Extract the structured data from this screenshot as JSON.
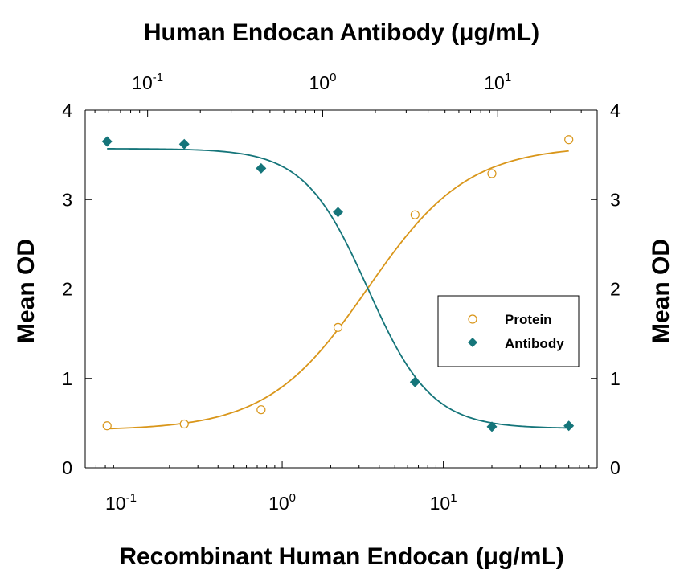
{
  "chart_data": {
    "type": "scatter",
    "title": "",
    "xlabel": "Recombinant Human Endocan (μg/mL)",
    "x2label": "Human Endocan Antibody (μg/mL)",
    "ylabel": "Mean OD",
    "y2label": "Mean OD",
    "x_scale": "log",
    "x_ticks": [
      0.1,
      1,
      10
    ],
    "x_tick_labels": [
      {
        "base": "10",
        "exp": "-1"
      },
      {
        "base": "10",
        "exp": "0"
      },
      {
        "base": "10",
        "exp": "1"
      }
    ],
    "x2_ticks": [
      0.1,
      1,
      10
    ],
    "x2_tick_labels": [
      {
        "base": "10",
        "exp": "-1"
      },
      {
        "base": "10",
        "exp": "0"
      },
      {
        "base": "10",
        "exp": "1"
      }
    ],
    "xlim": [
      0.06,
      90
    ],
    "x2lim": [
      0.044,
      37
    ],
    "ylim": [
      0,
      4
    ],
    "y_ticks": [
      0,
      1,
      2,
      3,
      4
    ],
    "y_tick_labels": [
      "0",
      "1",
      "2",
      "3",
      "4"
    ],
    "grid": false,
    "legend_position": "right-center",
    "series": [
      {
        "name": "Protein",
        "axis": "bottom",
        "marker": "open-circle",
        "color": "#d9961a",
        "points": [
          {
            "x": 0.082,
            "y": 0.47
          },
          {
            "x": 0.247,
            "y": 0.49
          },
          {
            "x": 0.74,
            "y": 0.65
          },
          {
            "x": 2.22,
            "y": 1.57
          },
          {
            "x": 6.67,
            "y": 2.83
          },
          {
            "x": 20,
            "y": 3.29
          },
          {
            "x": 60,
            "y": 3.67
          }
        ],
        "fit": {
          "bottom": 0.42,
          "top": 3.6,
          "ec50": 3.4,
          "hill": 1.4,
          "x_from": 0.082,
          "x_to": 60
        }
      },
      {
        "name": "Antibody",
        "axis": "bottom",
        "marker": "filled-diamond",
        "color": "#15757a",
        "points": [
          {
            "x": 0.082,
            "y": 3.65
          },
          {
            "x": 0.247,
            "y": 3.62
          },
          {
            "x": 0.74,
            "y": 3.35
          },
          {
            "x": 2.22,
            "y": 2.86
          },
          {
            "x": 6.67,
            "y": 0.96
          },
          {
            "x": 20,
            "y": 0.46
          },
          {
            "x": 60,
            "y": 0.47
          }
        ],
        "fit": {
          "bottom": 0.44,
          "top": 3.57,
          "ec50": 3.4,
          "hill": -2.2,
          "x_from": 0.082,
          "x_to": 60
        }
      }
    ]
  }
}
